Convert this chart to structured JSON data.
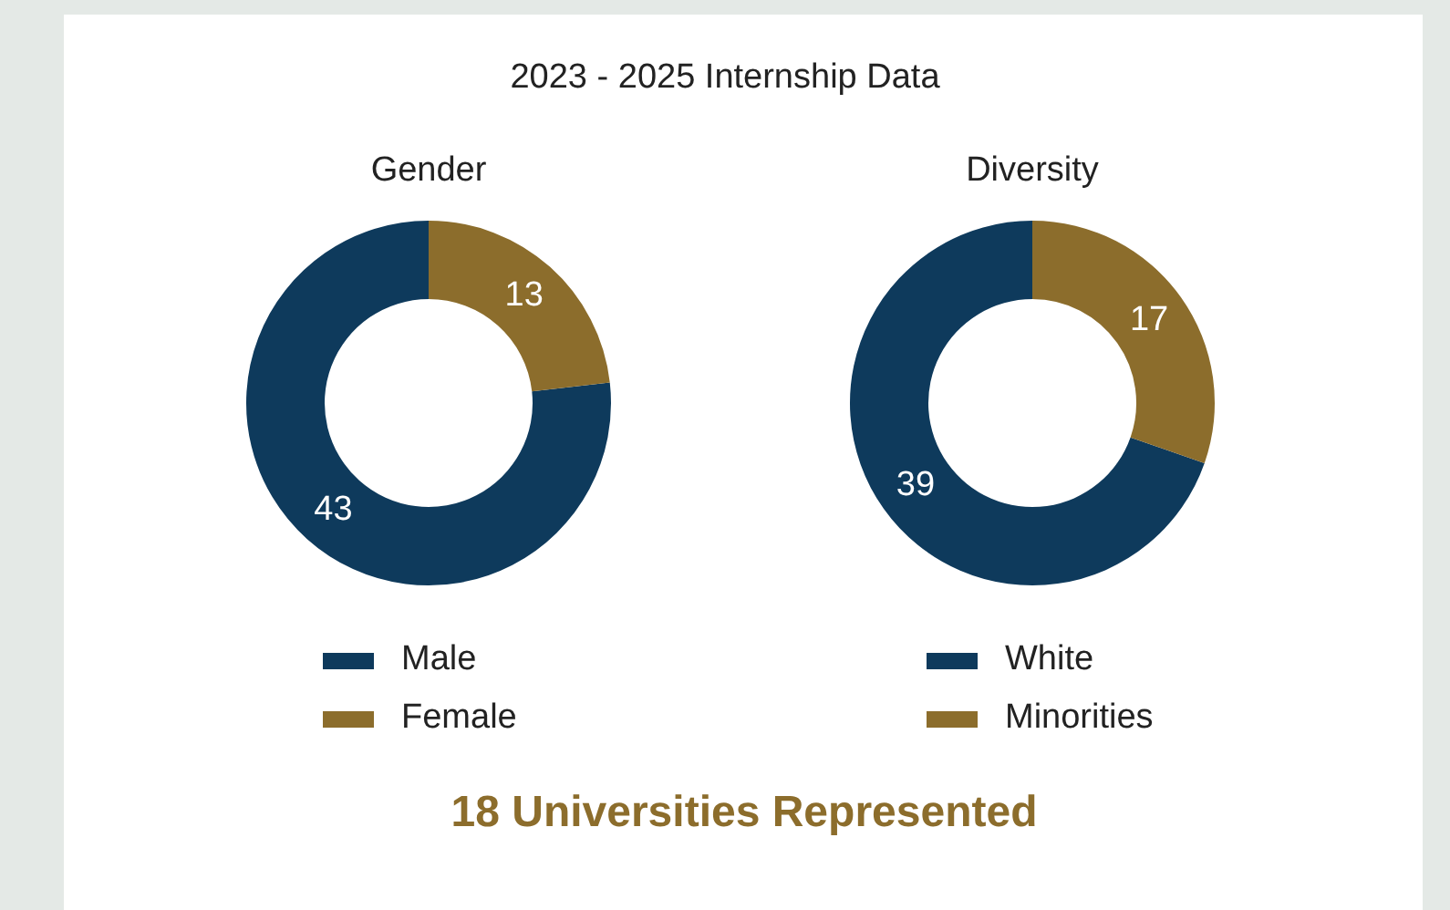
{
  "chart_data": [
    {
      "type": "donut",
      "title": "2023 - 2025 Internship Data",
      "subtitle": "Gender",
      "categories": [
        "Male",
        "Female"
      ],
      "values": [
        43,
        13
      ],
      "colors": [
        "#0e3a5c",
        "#8c6d2c"
      ],
      "data_labels": true,
      "legend": "bottom"
    },
    {
      "type": "donut",
      "subtitle": "Diversity",
      "categories": [
        "White",
        "Minorities"
      ],
      "values": [
        39,
        17
      ],
      "colors": [
        "#0e3a5c",
        "#8c6d2c"
      ],
      "data_labels": true,
      "legend": "bottom",
      "annotations": [
        "18 Universities Represented"
      ]
    }
  ]
}
